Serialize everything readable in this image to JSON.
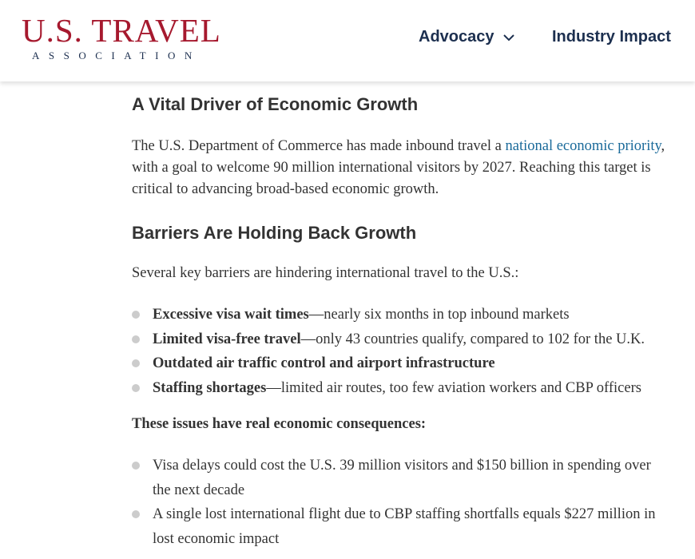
{
  "header": {
    "logo_main": "U.S. TRAVEL",
    "logo_sub": "ASSOCIATION",
    "nav": [
      "Advocacy",
      "Industry Impact"
    ]
  },
  "article": {
    "heading1": "A Vital Driver of Economic Growth",
    "intro": {
      "before": "The U.S. Department of Commerce has made inbound travel a ",
      "link": "national economic priority",
      "after": ", with a goal to welcome 90 million international visitors by 2027. Reaching this target is critical to advancing broad-based economic growth."
    },
    "heading2": "Barriers Are Holding Back Growth",
    "barriers_lead": "Several key barriers are hindering international travel to the U.S.:",
    "barriers": [
      {
        "bold": "Excessive visa wait times",
        "rest": "—nearly six months in top inbound markets"
      },
      {
        "bold": "Limited visa-free travel",
        "rest": "—only 43 countries qualify, compared to 102 for the U.K."
      },
      {
        "bold": "Outdated air traffic control and airport infrastructure",
        "rest": ""
      },
      {
        "bold": "Staffing shortages",
        "rest": "—limited air routes, too few aviation workers and CBP officers"
      }
    ],
    "consequences_lead": "These issues have real economic consequences:",
    "consequences": [
      "Visa delays could cost the U.S. 39 million visitors and $150 billion in spending over the next decade",
      "A single lost international flight due to CBP staffing shortfalls equals $227 million in lost economic impact"
    ]
  }
}
